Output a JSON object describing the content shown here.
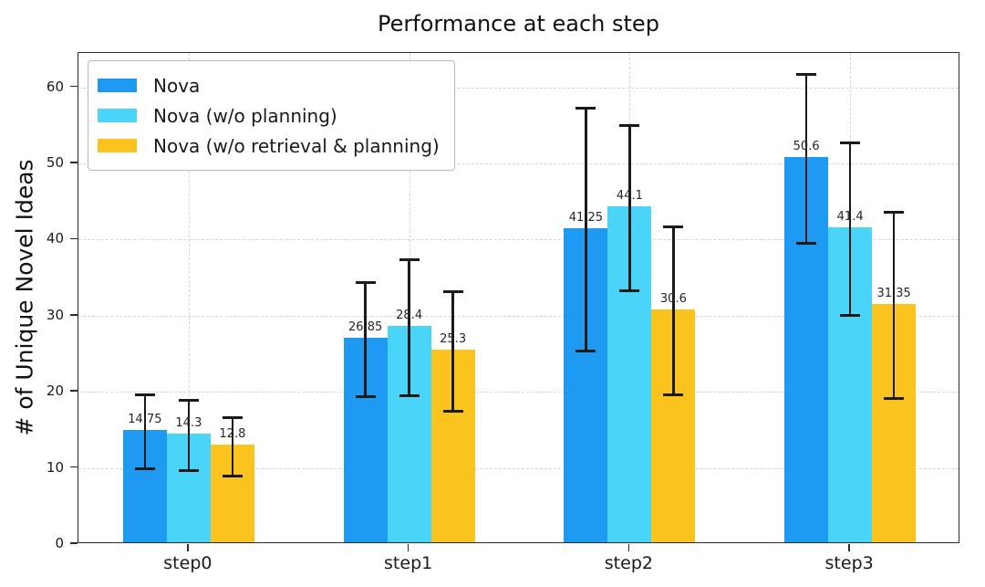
{
  "title": "Performance at each step",
  "ylabel": "# of Unique Novel Ideas",
  "colors": {
    "spine": "#2b2b2b",
    "grid": "#d4d4d4",
    "error_bar": "#1a1a1a",
    "background": "#ffffff"
  },
  "chart_data": {
    "type": "bar",
    "title": "Performance at each step",
    "xlabel": "",
    "ylabel": "# of Unique Novel Ideas",
    "categories": [
      "step0",
      "step1",
      "step2",
      "step3"
    ],
    "series": [
      {
        "name": "Nova",
        "color": "#1E9AF2",
        "values": [
          14.75,
          26.85,
          41.25,
          50.6
        ],
        "errors": [
          4.9,
          7.5,
          16.0,
          11.1
        ]
      },
      {
        "name": "Nova (w/o planning)",
        "color": "#4AD4F7",
        "values": [
          14.3,
          28.4,
          44.1,
          41.4
        ],
        "errors": [
          4.7,
          9.0,
          10.9,
          11.4
        ]
      },
      {
        "name": "Nova (w/o retrieval & planning)",
        "color": "#FBC31D",
        "values": [
          12.8,
          25.3,
          30.6,
          31.35
        ],
        "errors": [
          3.9,
          7.9,
          11.1,
          12.3
        ]
      }
    ],
    "yticks": [
      0,
      10,
      20,
      30,
      40,
      50,
      60
    ],
    "ylim": [
      0,
      64.5
    ],
    "grid": "dashed-horizontal-and-vertical",
    "legend_position": "upper-left",
    "error_bars": true,
    "value_labels_shown": true
  }
}
